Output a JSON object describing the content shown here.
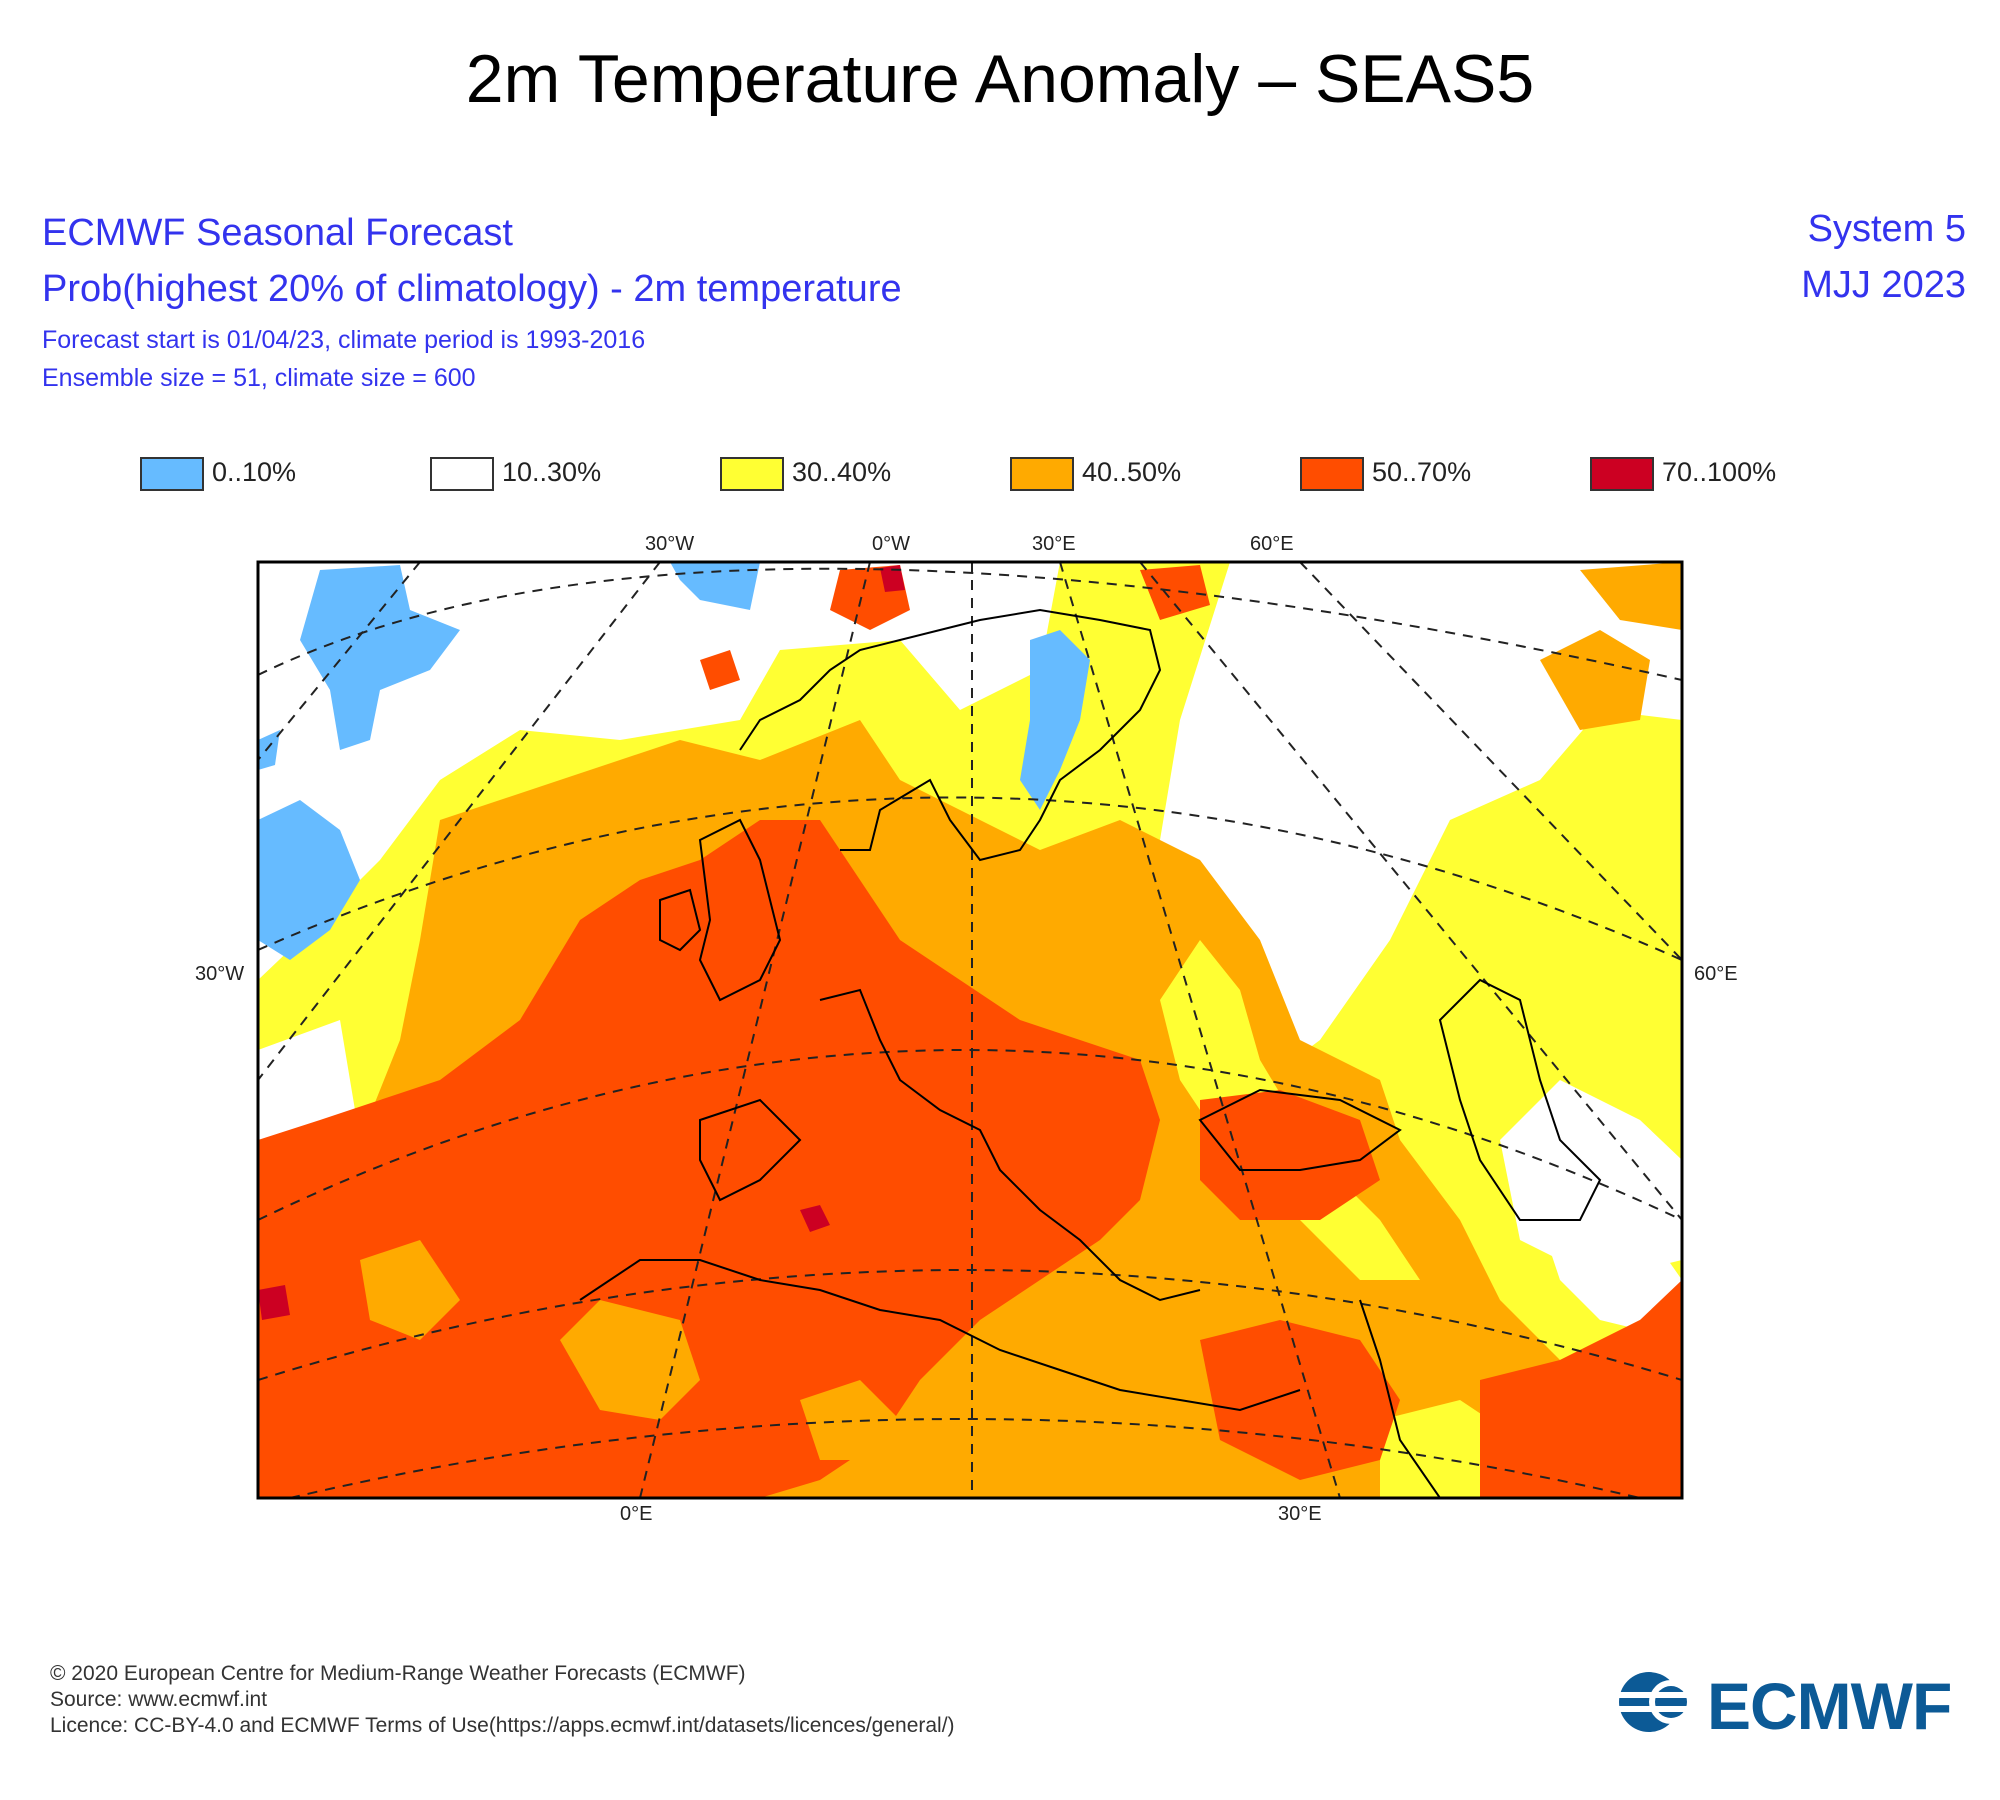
{
  "title": "2m Temperature Anomaly – SEAS5",
  "header": {
    "line1": "ECMWF Seasonal Forecast",
    "line2": "Prob(highest 20% of climatology) - 2m temperature",
    "line3": "Forecast start is 01/04/23, climate period is 1993-2016",
    "line4": "Ensemble size = 51, climate size = 600",
    "system": "System 5",
    "period": "MJJ 2023"
  },
  "legend": [
    {
      "label": "0..10%",
      "color": "#66bbff"
    },
    {
      "label": "10..30%",
      "color": "#ffffff"
    },
    {
      "label": "30..40%",
      "color": "#ffff33"
    },
    {
      "label": "40..50%",
      "color": "#ffaa00"
    },
    {
      "label": "50..70%",
      "color": "#ff4d00"
    },
    {
      "label": "70..100%",
      "color": "#cc0022"
    }
  ],
  "map": {
    "top_labels": [
      "30°W",
      "0°W",
      "30°E",
      "60°E"
    ],
    "left_label": "30°W",
    "right_label": "60°E",
    "bottom_labels": [
      "0°E",
      "30°E"
    ]
  },
  "footer": {
    "line1": "© 2020 European Centre for Medium-Range Weather Forecasts (ECMWF)",
    "line2": "Source: www.ecmwf.int",
    "line3": "Licence: CC-BY-4.0 and ECMWF Terms of Use(https://apps.ecmwf.int/datasets/licences/general/)"
  },
  "logo": {
    "text": "ECMWF",
    "color": "#0c5a96"
  }
}
